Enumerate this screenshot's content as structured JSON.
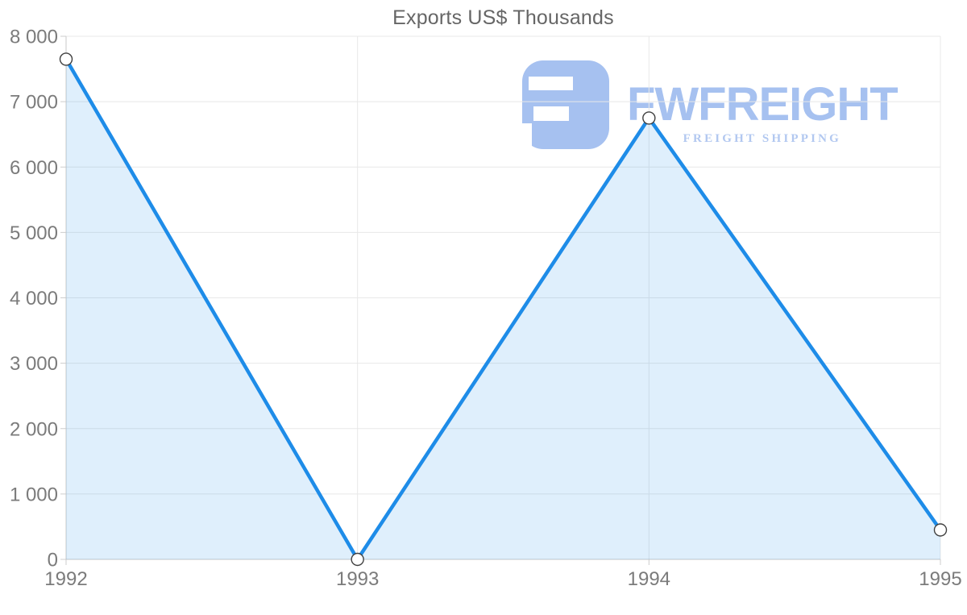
{
  "page": {
    "background": "#ffffff"
  },
  "chart_data": {
    "type": "area",
    "title": "Exports US$ Thousands",
    "categories": [
      "1992",
      "1993",
      "1994",
      "1995"
    ],
    "values": [
      7650,
      0,
      6750,
      450
    ],
    "xlabel": "",
    "ylabel": "",
    "ylim": [
      0,
      8000
    ],
    "ytick_interval": 1000,
    "ytick_labels": [
      "0",
      "1 000",
      "2 000",
      "3 000",
      "4 000",
      "5 000",
      "6 000",
      "7 000",
      "8 000"
    ],
    "grid": true,
    "legend": "none",
    "styles": {
      "line_color": "#1e8ce8",
      "line_width": 4.5,
      "area_fill": "rgba(30,140,232,0.14)",
      "marker_fill": "#ffffff",
      "marker_stroke": "#3f3f3f",
      "marker_radius": 7.5,
      "grid_color": "#e8e8e8",
      "axis_color": "#c9c9c9",
      "tick_color": "#cccccc",
      "tick_label_color": "#7b7b7b",
      "title_color": "#666666"
    }
  },
  "watermark": {
    "brand": "FWFREIGHT",
    "tagline": "FREIGHT SHIPPING",
    "logo_color": "#a6c1f0",
    "tagline_color": "#b2c8f0"
  }
}
